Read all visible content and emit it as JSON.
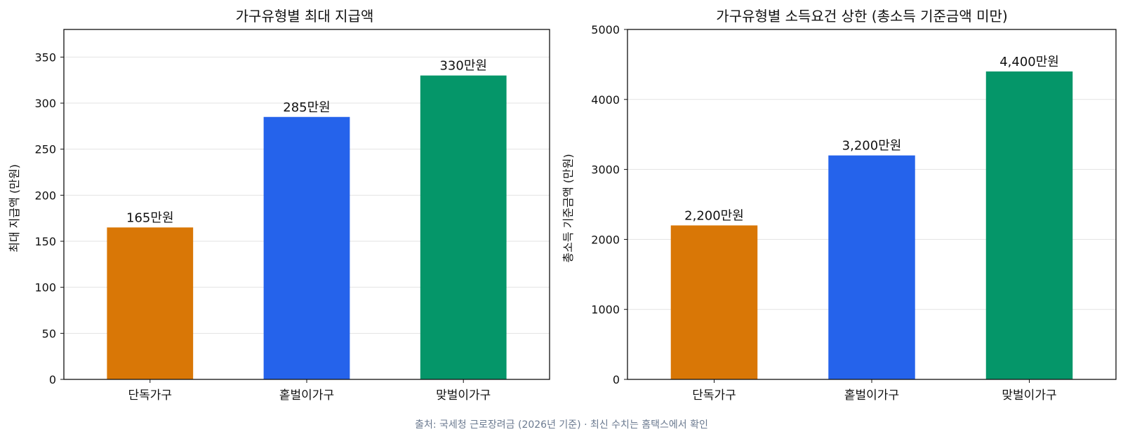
{
  "chart_data": [
    {
      "type": "bar",
      "title": "가구유형별 최대 지급액",
      "xlabel": "",
      "ylabel": "최대 지급액 (만원)",
      "categories": [
        "단독가구",
        "홑벌이가구",
        "맞벌이가구"
      ],
      "values": [
        165,
        285,
        330
      ],
      "data_labels": [
        "165만원",
        "285만원",
        "330만원"
      ],
      "colors": [
        "#d97706",
        "#2563eb",
        "#059669"
      ],
      "ylim": [
        0,
        380
      ],
      "yticks": [
        0,
        50,
        100,
        150,
        200,
        250,
        300,
        350
      ],
      "grid": true
    },
    {
      "type": "bar",
      "title": "가구유형별 소득요건 상한 (총소득 기준금액 미만)",
      "xlabel": "",
      "ylabel": "총소득 기준금액 (만원)",
      "categories": [
        "단독가구",
        "홑벌이가구",
        "맞벌이가구"
      ],
      "values": [
        2200,
        3200,
        4400
      ],
      "data_labels": [
        "2,200만원",
        "3,200만원",
        "4,400만원"
      ],
      "colors": [
        "#d97706",
        "#2563eb",
        "#059669"
      ],
      "ylim": [
        0,
        5000
      ],
      "yticks": [
        0,
        1000,
        2000,
        3000,
        4000,
        5000
      ],
      "grid": true
    }
  ],
  "footer": {
    "source": "출처: 국세청 근로장려금 (2026년 기준) · 최신 수치는 홈택스에서 확인"
  }
}
